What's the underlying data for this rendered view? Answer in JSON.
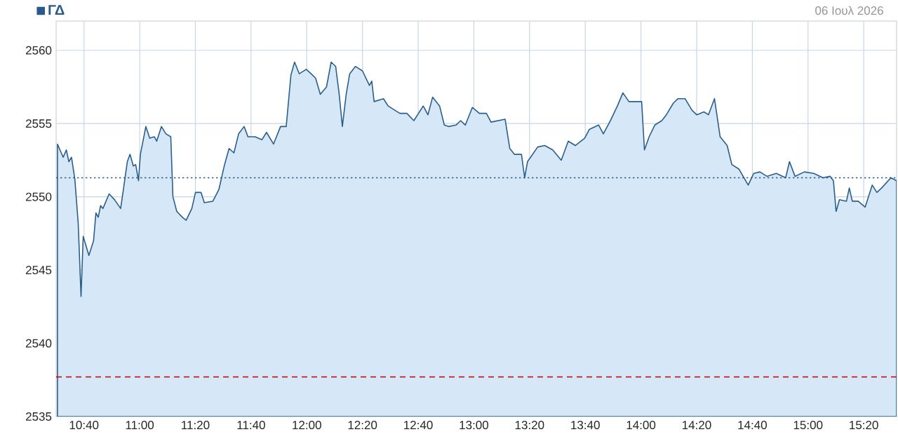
{
  "chart_data": {
    "type": "area",
    "x": [
      10.508,
      10.542,
      10.561,
      10.576,
      10.592,
      10.612,
      10.632,
      10.649,
      10.662,
      10.696,
      10.724,
      10.738,
      10.752,
      10.766,
      10.78,
      10.817,
      10.85,
      10.886,
      10.9,
      10.926,
      10.942,
      10.962,
      10.976,
      10.993,
      11.004,
      11.037,
      11.06,
      11.088,
      11.102,
      11.13,
      11.157,
      11.186,
      11.199,
      11.222,
      11.256,
      11.278,
      11.312,
      11.334,
      11.367,
      11.387,
      11.438,
      11.474,
      11.508,
      11.535,
      11.564,
      11.592,
      11.625,
      11.648,
      11.69,
      11.732,
      11.759,
      11.801,
      11.843,
      11.877,
      11.905,
      11.927,
      11.955,
      11.997,
      12.026,
      12.053,
      12.081,
      12.118,
      12.146,
      12.173,
      12.194,
      12.213,
      12.236,
      12.257,
      12.291,
      12.333,
      12.375,
      12.389,
      12.403,
      12.459,
      12.487,
      12.557,
      12.599,
      12.641,
      12.697,
      12.725,
      12.753,
      12.795,
      12.823,
      12.851,
      12.893,
      12.921,
      12.949,
      12.991,
      13.033,
      13.075,
      13.103,
      13.145,
      13.187,
      13.215,
      13.243,
      13.285,
      13.304,
      13.321,
      13.382,
      13.424,
      13.472,
      13.523,
      13.565,
      13.607,
      13.663,
      13.691,
      13.747,
      13.775,
      13.817,
      13.859,
      13.892,
      13.928,
      14.004,
      14.021,
      14.049,
      14.083,
      14.125,
      14.152,
      14.194,
      14.222,
      14.264,
      14.306,
      14.334,
      14.377,
      14.404,
      14.44,
      14.474,
      14.516,
      14.544,
      14.586,
      14.642,
      14.675,
      14.712,
      14.754,
      14.81,
      14.866,
      14.889,
      14.922,
      14.978,
      15.034,
      15.09,
      15.132,
      15.152,
      15.168,
      15.188,
      15.23,
      15.247,
      15.265,
      15.3,
      15.342,
      15.384,
      15.412,
      15.44,
      15.496,
      15.53
    ],
    "series": [
      {
        "name": "ΓΔ",
        "color": "#d6e8f7",
        "values": [
          2553.6,
          2552.7,
          2553.2,
          2552.4,
          2552.7,
          2551.2,
          2548.2,
          2543.2,
          2547.3,
          2546.0,
          2547.0,
          2548.9,
          2548.6,
          2549.4,
          2549.2,
          2550.2,
          2549.8,
          2549.2,
          2550.3,
          2552.4,
          2552.9,
          2552.1,
          2552.2,
          2551.1,
          2552.9,
          2554.8,
          2554.0,
          2554.1,
          2553.8,
          2554.8,
          2554.3,
          2554.1,
          2550.0,
          2549.0,
          2548.6,
          2548.4,
          2549.2,
          2550.3,
          2550.3,
          2549.6,
          2549.7,
          2550.5,
          2552.2,
          2553.3,
          2553.0,
          2554.3,
          2554.8,
          2554.1,
          2554.1,
          2553.9,
          2554.4,
          2553.6,
          2554.8,
          2554.8,
          2558.3,
          2559.2,
          2558.4,
          2558.7,
          2558.4,
          2558.1,
          2557.0,
          2557.5,
          2559.2,
          2558.9,
          2557.0,
          2554.8,
          2557.0,
          2558.4,
          2558.9,
          2558.6,
          2557.6,
          2557.9,
          2556.5,
          2556.7,
          2556.2,
          2555.7,
          2555.7,
          2555.2,
          2556.2,
          2555.6,
          2556.8,
          2556.2,
          2554.9,
          2554.8,
          2554.9,
          2555.2,
          2554.9,
          2556.1,
          2555.7,
          2555.7,
          2555.1,
          2555.2,
          2555.3,
          2553.3,
          2552.9,
          2552.9,
          2551.3,
          2552.4,
          2553.4,
          2553.5,
          2553.2,
          2552.5,
          2553.8,
          2553.5,
          2554.0,
          2554.6,
          2554.9,
          2554.3,
          2555.2,
          2556.2,
          2557.1,
          2556.5,
          2556.5,
          2553.2,
          2554.1,
          2554.9,
          2555.2,
          2555.6,
          2556.4,
          2556.7,
          2556.7,
          2555.9,
          2555.6,
          2555.8,
          2555.6,
          2556.7,
          2554.1,
          2553.5,
          2552.2,
          2551.9,
          2550.8,
          2551.6,
          2551.7,
          2551.4,
          2551.6,
          2551.3,
          2552.4,
          2551.4,
          2551.7,
          2551.6,
          2551.3,
          2551.4,
          2551.1,
          2549.0,
          2549.8,
          2549.7,
          2550.6,
          2549.7,
          2549.7,
          2549.3,
          2550.8,
          2550.3,
          2550.6,
          2551.3,
          2551.1
        ]
      }
    ],
    "xlim": [
      10.5,
      15.53
    ],
    "ylim": [
      2535,
      2562
    ],
    "xticks": [
      {
        "value": 10.6667,
        "label": "10:40"
      },
      {
        "value": 11,
        "label": "11:00"
      },
      {
        "value": 11.3333,
        "label": "11:20"
      },
      {
        "value": 11.6667,
        "label": "11:40"
      },
      {
        "value": 12,
        "label": "12:00"
      },
      {
        "value": 12.3333,
        "label": "12:20"
      },
      {
        "value": 12.6667,
        "label": "12:40"
      },
      {
        "value": 13,
        "label": "13:00"
      },
      {
        "value": 13.3333,
        "label": "13:20"
      },
      {
        "value": 13.6667,
        "label": "13:40"
      },
      {
        "value": 14,
        "label": "14:00"
      },
      {
        "value": 14.3333,
        "label": "14:20"
      },
      {
        "value": 14.6667,
        "label": "14:40"
      },
      {
        "value": 15,
        "label": "15:00"
      },
      {
        "value": 15.3333,
        "label": "15:20"
      }
    ],
    "yticks": [
      2535,
      2540,
      2545,
      2550,
      2555,
      2560
    ],
    "ref_lines": [
      {
        "axis": "y",
        "value": 2551.3,
        "color": "#2a5a8c",
        "line_style": "dotted"
      },
      {
        "axis": "y",
        "value": 2537.7,
        "color": "#c00000",
        "line_style": "dashed"
      }
    ],
    "grid": true,
    "legend": "top left",
    "annotations": [
      "06 Ιουλ 2026"
    ]
  }
}
